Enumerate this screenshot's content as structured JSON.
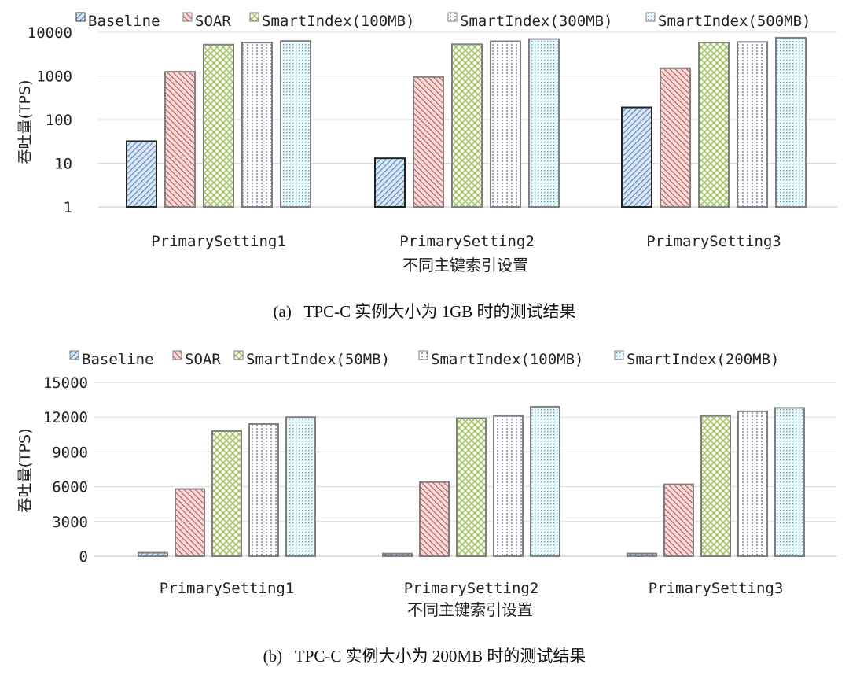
{
  "colors": {
    "Baseline": "#4f81bd",
    "SOAR": "#c0504d",
    "SmartIndexA": "#9bbb59",
    "SmartIndexB": "#8064a2",
    "SmartIndexC": "#4bacc6",
    "grid": "#d9d9d9",
    "bar_outline": "#7f7f7f"
  },
  "chart_data": [
    {
      "type": "bar",
      "scale": "log",
      "categories": [
        "PrimarySetting1",
        "PrimarySetting2",
        "PrimarySetting3"
      ],
      "series": [
        {
          "name": "Baseline",
          "values": [
            32,
            13,
            190
          ]
        },
        {
          "name": "SOAR",
          "values": [
            1250,
            950,
            1500
          ]
        },
        {
          "name": "SmartIndex(100MB)",
          "values": [
            5200,
            5300,
            5800
          ]
        },
        {
          "name": "SmartIndex(300MB)",
          "values": [
            5800,
            6200,
            6000
          ]
        },
        {
          "name": "SmartIndex(500MB)",
          "values": [
            6300,
            7000,
            7500
          ]
        }
      ],
      "yticks": [
        "1",
        "10",
        "100",
        "1000",
        "10000"
      ],
      "ylim": [
        1,
        10000
      ],
      "ylabel": "吞吐量(TPS)",
      "xlabel": "不同主键索引设置",
      "caption": "(a)   TPC-C 实例大小为 1GB 时的测试结果",
      "grid": true,
      "legend": "top"
    },
    {
      "type": "bar",
      "scale": "linear",
      "categories": [
        "PrimarySetting1",
        "PrimarySetting2",
        "PrimarySetting3"
      ],
      "series": [
        {
          "name": "Baseline",
          "values": [
            300,
            220,
            230
          ]
        },
        {
          "name": "SOAR",
          "values": [
            5800,
            6400,
            6200
          ]
        },
        {
          "name": "SmartIndex(50MB)",
          "values": [
            10800,
            11900,
            12100
          ]
        },
        {
          "name": "SmartIndex(100MB)",
          "values": [
            11400,
            12100,
            12500
          ]
        },
        {
          "name": "SmartIndex(200MB)",
          "values": [
            12000,
            12900,
            12800
          ]
        }
      ],
      "yticks": [
        "0",
        "3000",
        "6000",
        "9000",
        "12000",
        "15000"
      ],
      "ylim": [
        0,
        15000
      ],
      "ylabel": "吞吐量(TPS)",
      "xlabel": "不同主键索引设置",
      "caption": "(b)   TPC-C 实例大小为 200MB 时的测试结果",
      "grid": true,
      "legend": "top"
    }
  ]
}
